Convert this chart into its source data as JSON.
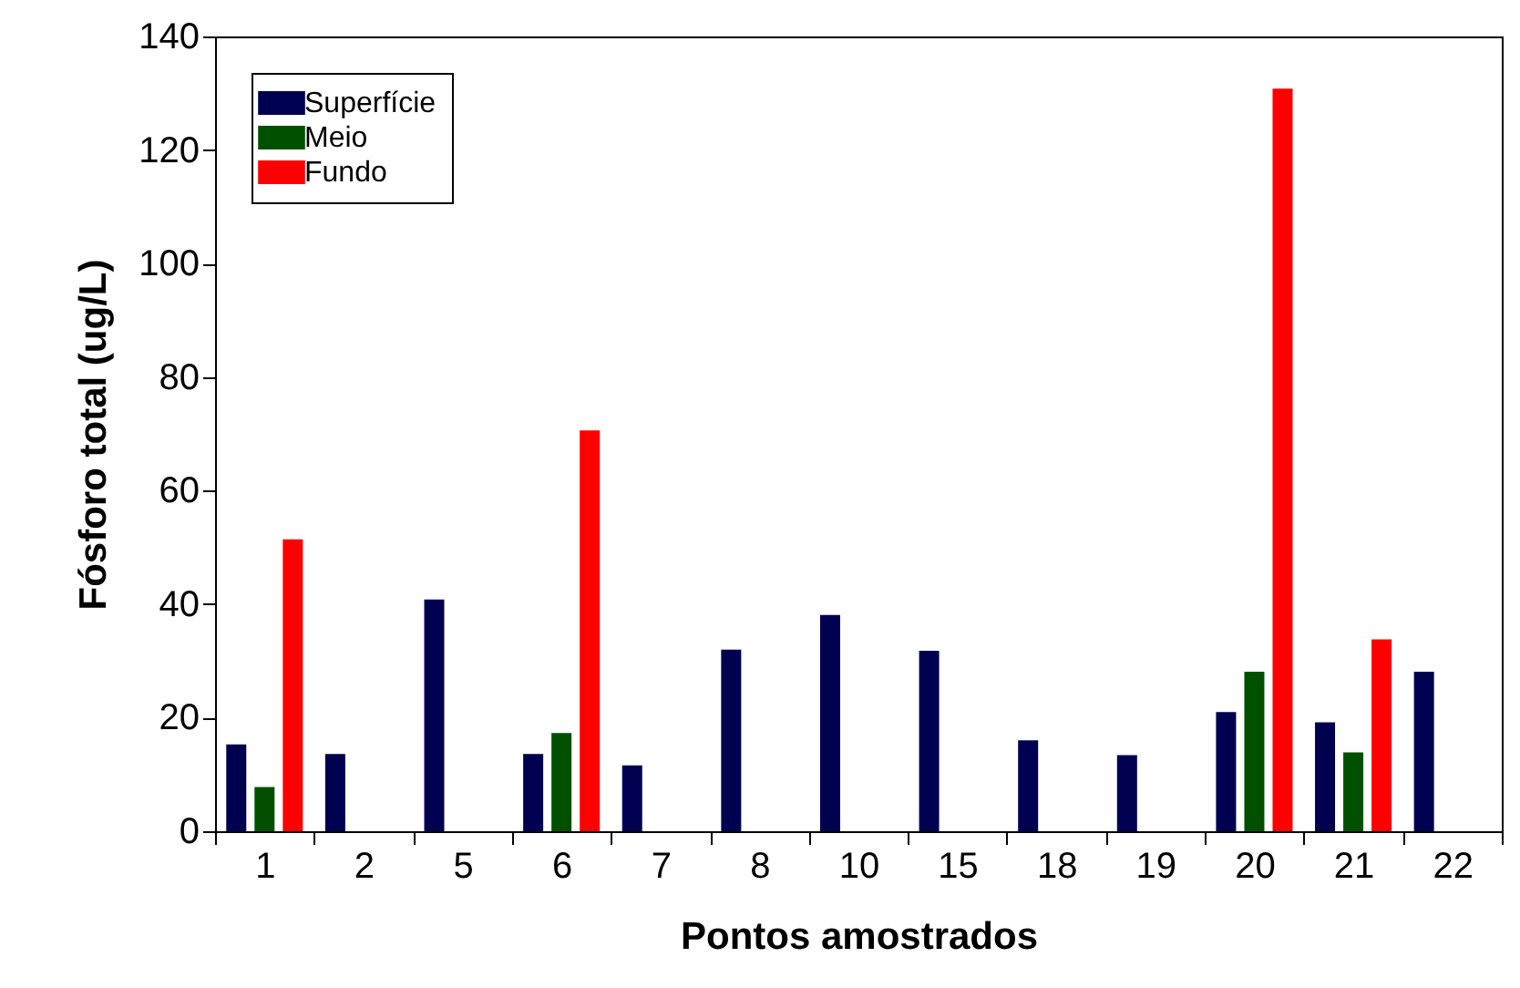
{
  "chart_data": {
    "type": "bar",
    "xlabel": "Pontos amostrados",
    "ylabel": "Fósforo total (ug/L)",
    "categories": [
      "1",
      "2",
      "5",
      "6",
      "7",
      "8",
      "10",
      "15",
      "18",
      "19",
      "20",
      "21",
      "22"
    ],
    "series": [
      {
        "name": "Superfície",
        "color": "#000050",
        "values": [
          15.3,
          13.6,
          40.8,
          13.6,
          11.6,
          32.0,
          38.1,
          31.8,
          16.0,
          13.4,
          21.0,
          19.2,
          28.1
        ]
      },
      {
        "name": "Meio",
        "color": "#005000",
        "values": [
          7.8,
          null,
          null,
          17.3,
          null,
          null,
          null,
          null,
          null,
          null,
          28.1,
          13.9,
          null
        ]
      },
      {
        "name": "Fundo",
        "color": "#ff0000",
        "values": [
          51.4,
          null,
          null,
          70.6,
          null,
          null,
          null,
          null,
          null,
          null,
          130.8,
          33.8,
          null
        ]
      }
    ],
    "ylim": [
      0,
      140
    ],
    "yticks": [
      0,
      20,
      40,
      60,
      80,
      100,
      120,
      140
    ],
    "grid": false,
    "legend": "top left"
  }
}
